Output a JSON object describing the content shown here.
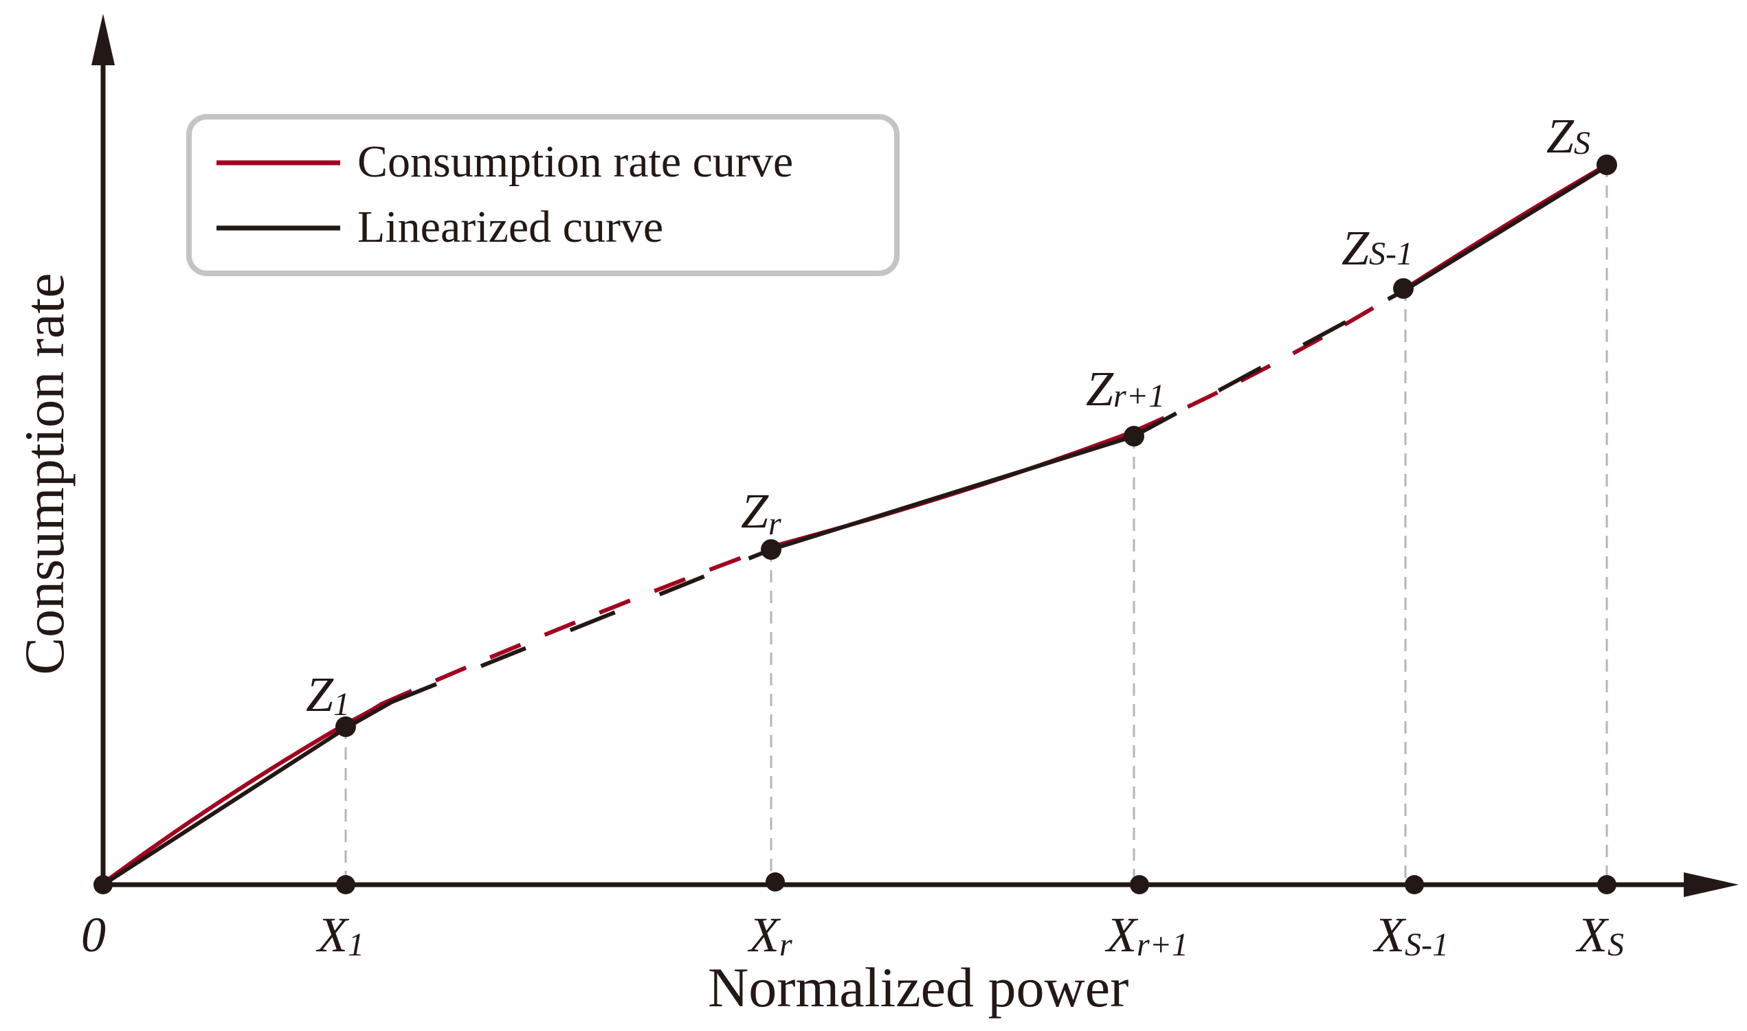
{
  "axes": {
    "x_title": "Normalized power",
    "y_title": "Consumption rate",
    "origin": "0"
  },
  "legend": {
    "items": [
      {
        "label": "Consumption rate curve",
        "color": "#a3001e"
      },
      {
        "label": "Linearized curve",
        "color": "#231815"
      }
    ]
  },
  "x_ticks": [
    {
      "main": "X",
      "sub": "1"
    },
    {
      "main": "X",
      "sub": "r"
    },
    {
      "main": "X",
      "sub": "r+1"
    },
    {
      "main": "X",
      "sub": "S-1"
    },
    {
      "main": "X",
      "sub": "S"
    }
  ],
  "points": [
    {
      "main": "Z",
      "sub": "1"
    },
    {
      "main": "Z",
      "sub": "r"
    },
    {
      "main": "Z",
      "sub": "r+1"
    },
    {
      "main": "Z",
      "sub": "S-1"
    },
    {
      "main": "Z",
      "sub": "S"
    }
  ],
  "colors": {
    "axis": "#231815",
    "curve": "#a3001e",
    "linear": "#231815",
    "guide": "#b5b5b5",
    "legend_border": "#c4c4c4"
  }
}
